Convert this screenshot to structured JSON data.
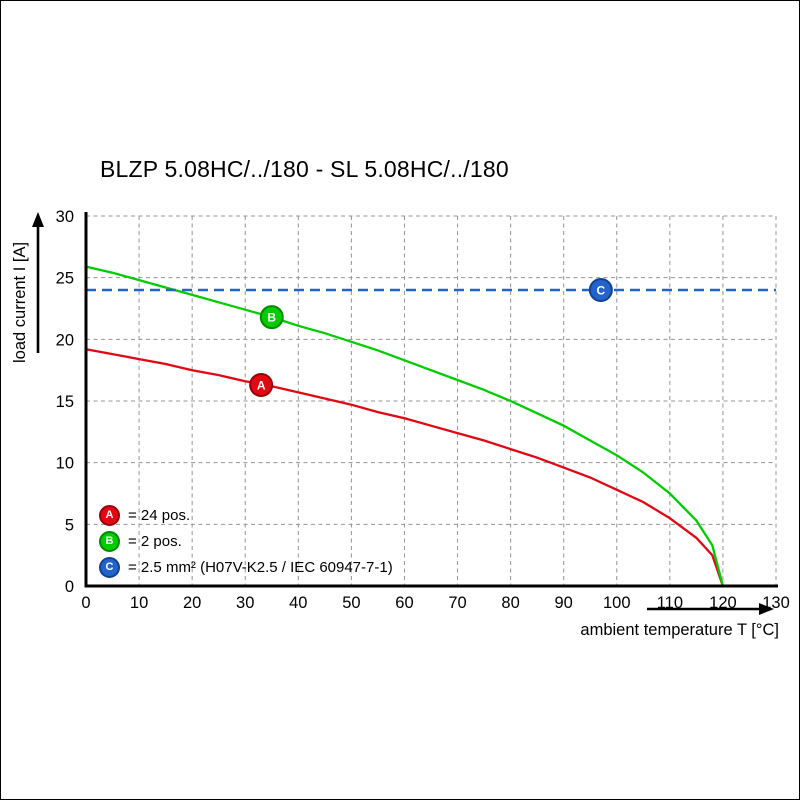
{
  "title": "BLZP 5.08HC/../180 - SL 5.08HC/../180",
  "chart_data": {
    "type": "line",
    "title": "BLZP 5.08HC/../180 - SL 5.08HC/../180",
    "xlabel": "ambient temperature T [°C]",
    "ylabel": "load current I [A]",
    "xlim": [
      0,
      130
    ],
    "ylim": [
      0,
      30
    ],
    "xticks": [
      0,
      10,
      20,
      30,
      40,
      50,
      60,
      70,
      80,
      90,
      100,
      110,
      120,
      130
    ],
    "yticks": [
      0,
      5,
      10,
      15,
      20,
      25,
      30
    ],
    "grid": "dashed",
    "legend_position": "bottom-left",
    "series": [
      {
        "letter": "A",
        "label": "= 24 pos.",
        "color": "#e30613",
        "edge": "#9a0008",
        "marker_at": [
          33,
          16.3
        ],
        "points": [
          [
            0,
            19.2
          ],
          [
            5,
            18.8
          ],
          [
            10,
            18.4
          ],
          [
            15,
            18.0
          ],
          [
            20,
            17.5
          ],
          [
            25,
            17.1
          ],
          [
            30,
            16.6
          ],
          [
            35,
            16.2
          ],
          [
            40,
            15.7
          ],
          [
            45,
            15.2
          ],
          [
            50,
            14.7
          ],
          [
            55,
            14.1
          ],
          [
            60,
            13.6
          ],
          [
            65,
            13.0
          ],
          [
            70,
            12.4
          ],
          [
            75,
            11.8
          ],
          [
            80,
            11.1
          ],
          [
            85,
            10.4
          ],
          [
            90,
            9.6
          ],
          [
            95,
            8.8
          ],
          [
            100,
            7.8
          ],
          [
            105,
            6.8
          ],
          [
            110,
            5.5
          ],
          [
            115,
            3.9
          ],
          [
            118,
            2.5
          ],
          [
            120,
            0
          ]
        ]
      },
      {
        "letter": "B",
        "label": "= 2 pos.",
        "color": "#00cc00",
        "edge": "#008a00",
        "marker_at": [
          35,
          21.8
        ],
        "points": [
          [
            0,
            25.9
          ],
          [
            5,
            25.4
          ],
          [
            10,
            24.8
          ],
          [
            15,
            24.2
          ],
          [
            20,
            23.6
          ],
          [
            25,
            23.0
          ],
          [
            30,
            22.4
          ],
          [
            35,
            21.8
          ],
          [
            40,
            21.1
          ],
          [
            45,
            20.5
          ],
          [
            50,
            19.8
          ],
          [
            55,
            19.1
          ],
          [
            60,
            18.3
          ],
          [
            65,
            17.5
          ],
          [
            70,
            16.7
          ],
          [
            75,
            15.9
          ],
          [
            80,
            15.0
          ],
          [
            85,
            14.0
          ],
          [
            90,
            13.0
          ],
          [
            95,
            11.8
          ],
          [
            100,
            10.6
          ],
          [
            105,
            9.2
          ],
          [
            110,
            7.5
          ],
          [
            115,
            5.3
          ],
          [
            118,
            3.3
          ],
          [
            120,
            0
          ]
        ]
      },
      {
        "letter": "C",
        "label": "= 2.5 mm² (H07V-K2.5 / IEC 60947-7-1)",
        "color": "#2263cc",
        "edge": "#14418f",
        "style": "dashed",
        "value": 24,
        "marker_at": [
          97,
          24
        ]
      }
    ]
  }
}
